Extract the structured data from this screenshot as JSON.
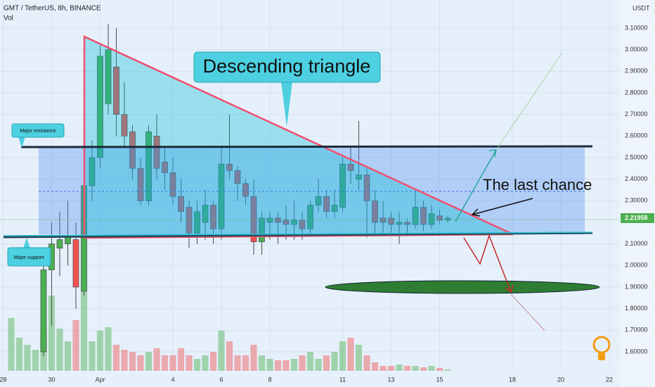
{
  "chart_data": {
    "type": "candlestick",
    "title": "GMT / TetherUS, 8h, BINANCE",
    "volume_label": "Vol",
    "y_axis_label": "USDT",
    "annotations": [
      "Descending triangle",
      "The last chance",
      "Major resistance",
      "Major support"
    ],
    "up_color": "#4caf50",
    "down_color": "#ef5350",
    "grid": true,
    "open": [
      null,
      null,
      null,
      null,
      1.6,
      1.98,
      2.08,
      2.1,
      2.12,
      1.88,
      2.37,
      2.5,
      2.75,
      2.92,
      2.7,
      2.62,
      2.45,
      2.3,
      2.6,
      2.48,
      2.43,
      2.32,
      2.27,
      2.15,
      2.2,
      2.28,
      2.17,
      2.47,
      2.44,
      2.38,
      2.32,
      2.11,
      2.2,
      2.22,
      2.21,
      2.19,
      2.21,
      2.17,
      2.28,
      2.32,
      2.25,
      2.27,
      2.47,
      2.4,
      2.42,
      2.3,
      2.22,
      2.22,
      2.19,
      2.2,
      2.19,
      2.27,
      2.19,
      2.23,
      2.21
    ],
    "high": [
      null,
      null,
      null,
      null,
      2.03,
      2.2,
      2.25,
      2.3,
      2.2,
      2.4,
      2.58,
      3.02,
      3.12,
      3.1,
      2.85,
      2.65,
      2.5,
      2.65,
      2.7,
      2.55,
      2.5,
      2.4,
      2.3,
      2.3,
      2.35,
      2.3,
      2.55,
      2.7,
      2.46,
      2.4,
      2.4,
      2.25,
      2.25,
      2.25,
      2.28,
      2.3,
      2.25,
      2.3,
      2.4,
      2.35,
      2.35,
      2.5,
      2.55,
      2.67,
      2.45,
      2.35,
      2.3,
      2.25,
      2.25,
      2.22,
      2.35,
      2.3,
      2.28,
      2.26,
      2.23
    ],
    "low": [
      null,
      null,
      null,
      null,
      1.58,
      1.72,
      1.95,
      2.0,
      1.8,
      1.86,
      2.3,
      2.45,
      2.7,
      2.6,
      2.55,
      2.4,
      2.28,
      2.28,
      2.4,
      2.35,
      2.28,
      2.2,
      2.08,
      2.1,
      2.12,
      2.1,
      2.12,
      2.4,
      2.3,
      2.28,
      2.05,
      2.05,
      2.12,
      2.1,
      2.12,
      2.12,
      2.12,
      2.14,
      2.25,
      2.22,
      2.22,
      2.25,
      2.38,
      2.35,
      2.13,
      2.15,
      2.15,
      2.15,
      2.1,
      2.15,
      2.17,
      2.16,
      2.17,
      2.19,
      2.2
    ],
    "close": [
      null,
      null,
      null,
      null,
      1.98,
      2.1,
      2.12,
      2.14,
      1.9,
      2.37,
      2.5,
      2.97,
      3.0,
      2.7,
      2.6,
      2.45,
      2.3,
      2.62,
      2.45,
      2.43,
      2.32,
      2.25,
      2.15,
      2.25,
      2.28,
      2.17,
      2.47,
      2.44,
      2.38,
      2.32,
      2.11,
      2.22,
      2.22,
      2.2,
      2.19,
      2.21,
      2.17,
      2.28,
      2.32,
      2.25,
      2.28,
      2.47,
      2.44,
      2.42,
      2.3,
      2.2,
      2.2,
      2.19,
      2.2,
      2.19,
      2.27,
      2.19,
      2.24,
      2.21,
      2.21958
    ],
    "volume": [
      75,
      47,
      37,
      30,
      52,
      107,
      60,
      42,
      72,
      112,
      42,
      57,
      62,
      37,
      30,
      27,
      22,
      27,
      32,
      22,
      22,
      32,
      22,
      17,
      22,
      27,
      57,
      42,
      22,
      22,
      37,
      22,
      17,
      15,
      15,
      17,
      22,
      27,
      17,
      22,
      27,
      42,
      47,
      37,
      22,
      12,
      7,
      7,
      9,
      7,
      7,
      5,
      7,
      4,
      2
    ],
    "volume_lim": [
      0,
      150
    ],
    "ylim": [
      1.512,
      3.2304
    ],
    "yticks": [
      {
        "value": 1.6,
        "label": "1.60000"
      },
      {
        "value": 1.7,
        "label": "1.70000"
      },
      {
        "value": 1.8,
        "label": "1.80000"
      },
      {
        "value": 1.9,
        "label": "1.90000"
      },
      {
        "value": 2.0,
        "label": "2.00000"
      },
      {
        "value": 2.1,
        "label": "2.10000"
      },
      {
        "value": 2.3,
        "label": "2.30000"
      },
      {
        "value": 2.4,
        "label": "2.40000"
      },
      {
        "value": 2.5,
        "label": "2.50000"
      },
      {
        "value": 2.6,
        "label": "2.60000"
      },
      {
        "value": 2.7,
        "label": "2.70000"
      },
      {
        "value": 2.8,
        "label": "2.80000"
      },
      {
        "value": 2.9,
        "label": "2.90000"
      },
      {
        "value": 3.0,
        "label": "3.00000"
      },
      {
        "value": 3.1,
        "label": "3.10000"
      }
    ],
    "xlim": [
      -1.39,
      75.3
    ],
    "xticks": [
      {
        "value": -1,
        "label": "28"
      },
      {
        "value": 5,
        "label": "30"
      },
      {
        "value": 11,
        "label": "Apr"
      },
      {
        "value": 20,
        "label": "4"
      },
      {
        "value": 26,
        "label": "6"
      },
      {
        "value": 32,
        "label": "8"
      },
      {
        "value": 41,
        "label": "11"
      },
      {
        "value": 47,
        "label": "13"
      },
      {
        "value": 53,
        "label": "15"
      },
      {
        "value": 62,
        "label": "18"
      },
      {
        "value": 68,
        "label": "20"
      },
      {
        "value": 74,
        "label": "22"
      }
    ]
  }
}
